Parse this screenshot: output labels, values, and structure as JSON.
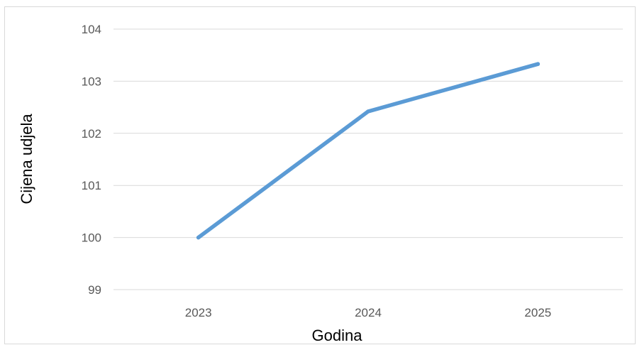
{
  "chart_data": {
    "type": "line",
    "title": "",
    "xlabel": "Godina",
    "ylabel": "Cijena udjela",
    "categories": [
      "2023",
      "2024",
      "2025"
    ],
    "series": [
      {
        "values": [
          100,
          102.42,
          103.33
        ]
      }
    ],
    "ylim": [
      99,
      104
    ],
    "yticks": [
      "99",
      "100",
      "101",
      "102",
      "103",
      "104"
    ],
    "grid": true,
    "legend": "none",
    "colors": {
      "line": "#5b9bd5",
      "grid": "#d9d9d9",
      "tick_text": "#595959",
      "axis_title": "#000000"
    }
  }
}
